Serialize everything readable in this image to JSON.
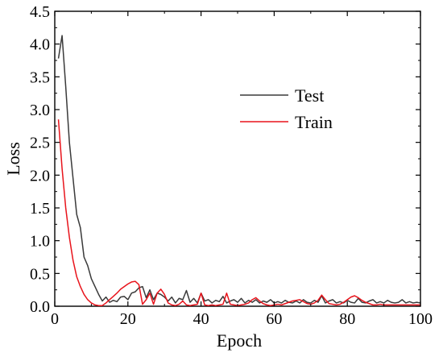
{
  "chart_data": {
    "type": "line",
    "title": "",
    "xlabel": "Epoch",
    "ylabel": "Loss",
    "xlim": [
      0,
      100
    ],
    "ylim": [
      0,
      4.5
    ],
    "xticks": [
      0,
      20,
      40,
      60,
      80,
      100
    ],
    "xtick_labels": [
      "0",
      "20",
      "40",
      "60",
      "80",
      "100"
    ],
    "yticks": [
      0,
      0.5,
      1.0,
      1.5,
      2.0,
      2.5,
      3.0,
      3.5,
      4.0,
      4.5
    ],
    "ytick_labels": [
      "0.0",
      "0.5",
      "1.0",
      "1.5",
      "2.0",
      "2.5",
      "3.0",
      "3.5",
      "4.0",
      "4.5"
    ],
    "grid": false,
    "legend_position": "upper-right",
    "series": [
      {
        "name": "Test",
        "color": "#3a3a3a",
        "x": [
          1,
          2,
          3,
          4,
          5,
          6,
          7,
          8,
          9,
          10,
          11,
          12,
          13,
          14,
          15,
          16,
          17,
          18,
          19,
          20,
          21,
          22,
          23,
          24,
          25,
          26,
          27,
          28,
          29,
          30,
          31,
          32,
          33,
          34,
          35,
          36,
          37,
          38,
          39,
          40,
          41,
          42,
          43,
          44,
          45,
          46,
          47,
          48,
          49,
          50,
          51,
          52,
          53,
          54,
          55,
          56,
          57,
          58,
          59,
          60,
          61,
          62,
          63,
          64,
          65,
          66,
          67,
          68,
          69,
          70,
          71,
          72,
          73,
          74,
          75,
          76,
          77,
          78,
          79,
          80,
          81,
          82,
          83,
          84,
          85,
          86,
          87,
          88,
          89,
          90,
          91,
          92,
          93,
          94,
          95,
          96,
          97,
          98,
          99,
          100
        ],
        "y": [
          3.78,
          4.13,
          3.35,
          2.5,
          1.95,
          1.4,
          1.2,
          0.75,
          0.62,
          0.42,
          0.3,
          0.18,
          0.08,
          0.14,
          0.06,
          0.09,
          0.07,
          0.14,
          0.15,
          0.1,
          0.2,
          0.22,
          0.28,
          0.3,
          0.13,
          0.25,
          0.1,
          0.2,
          0.18,
          0.14,
          0.08,
          0.14,
          0.05,
          0.12,
          0.1,
          0.24,
          0.06,
          0.12,
          0.05,
          0.2,
          0.08,
          0.1,
          0.05,
          0.09,
          0.07,
          0.15,
          0.05,
          0.08,
          0.1,
          0.06,
          0.12,
          0.05,
          0.09,
          0.06,
          0.1,
          0.05,
          0.08,
          0.06,
          0.1,
          0.05,
          0.07,
          0.05,
          0.09,
          0.06,
          0.05,
          0.08,
          0.05,
          0.1,
          0.06,
          0.05,
          0.09,
          0.06,
          0.16,
          0.05,
          0.08,
          0.1,
          0.05,
          0.07,
          0.05,
          0.09,
          0.06,
          0.05,
          0.12,
          0.06,
          0.05,
          0.08,
          0.1,
          0.05,
          0.07,
          0.05,
          0.09,
          0.06,
          0.05,
          0.06,
          0.1,
          0.05,
          0.07,
          0.05,
          0.06,
          0.05
        ]
      },
      {
        "name": "Train",
        "color": "#e8141c",
        "x": [
          1,
          2,
          3,
          4,
          5,
          6,
          7,
          8,
          9,
          10,
          11,
          12,
          13,
          14,
          15,
          16,
          17,
          18,
          19,
          20,
          21,
          22,
          23,
          24,
          25,
          26,
          27,
          28,
          29,
          30,
          31,
          32,
          33,
          34,
          35,
          36,
          37,
          38,
          39,
          40,
          41,
          42,
          43,
          44,
          45,
          46,
          47,
          48,
          49,
          50,
          51,
          52,
          53,
          54,
          55,
          56,
          57,
          58,
          59,
          60,
          61,
          62,
          63,
          64,
          65,
          66,
          67,
          68,
          69,
          70,
          71,
          72,
          73,
          74,
          75,
          76,
          77,
          78,
          79,
          80,
          81,
          82,
          83,
          84,
          85,
          86,
          87,
          88,
          89,
          90,
          91,
          92,
          93,
          94,
          95,
          96,
          97,
          98,
          99,
          100
        ],
        "y": [
          2.85,
          2.1,
          1.5,
          1.05,
          0.7,
          0.45,
          0.3,
          0.18,
          0.1,
          0.05,
          0.02,
          0.01,
          0.01,
          0.05,
          0.1,
          0.15,
          0.2,
          0.26,
          0.3,
          0.34,
          0.37,
          0.38,
          0.33,
          0.03,
          0.1,
          0.2,
          0.03,
          0.2,
          0.26,
          0.18,
          0.05,
          0.02,
          0.01,
          0.03,
          0.08,
          0.02,
          0.01,
          0.02,
          0.03,
          0.2,
          0.02,
          0.01,
          0.02,
          0.01,
          0.02,
          0.03,
          0.2,
          0.03,
          0.02,
          0.01,
          0.02,
          0.03,
          0.05,
          0.1,
          0.13,
          0.08,
          0.04,
          0.02,
          0.01,
          0.02,
          0.03,
          0.02,
          0.04,
          0.06,
          0.08,
          0.09,
          0.1,
          0.07,
          0.04,
          0.03,
          0.05,
          0.09,
          0.17,
          0.1,
          0.04,
          0.03,
          0.02,
          0.03,
          0.06,
          0.1,
          0.14,
          0.16,
          0.13,
          0.09,
          0.06,
          0.04,
          0.02,
          0.02,
          0.03,
          0.02,
          0.02,
          0.02,
          0.02,
          0.02,
          0.02,
          0.02,
          0.02,
          0.02,
          0.02,
          0.02
        ]
      }
    ]
  }
}
